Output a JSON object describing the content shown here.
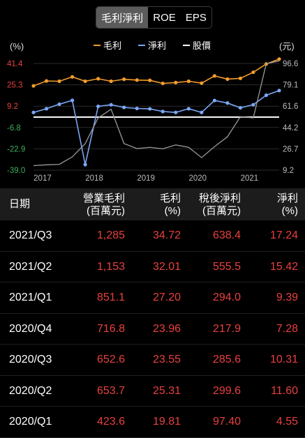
{
  "tabs": [
    {
      "label": "毛利淨利"
    },
    {
      "label": "ROE"
    },
    {
      "label": "EPS"
    }
  ],
  "chart_data": {
    "type": "line",
    "left_unit": "(%)",
    "right_unit": "(元)",
    "series": [
      {
        "name": "毛利",
        "color": "#f39c2b",
        "axis": "left",
        "values": [
          24.5,
          28.2,
          28.0,
          31.3,
          28.0,
          29.9,
          28.0,
          29.5,
          28.9,
          28.7,
          26.4,
          27.0,
          28.0,
          26.6,
          32.0,
          29.6,
          30.2,
          34.8,
          41.0,
          44.7
        ]
      },
      {
        "name": "淨利",
        "color": "#7ba7f5",
        "axis": "left",
        "values": [
          4.5,
          7.3,
          10.7,
          13.6,
          -34.8,
          9.1,
          10.3,
          8.3,
          7.5,
          7.2,
          5.2,
          4.5,
          7.3,
          4.5,
          13.5,
          11.6,
          8.0,
          10.3,
          17.5,
          21.0
        ]
      },
      {
        "name": "股價",
        "color": "#9a9a9a",
        "axis": "right",
        "values": [
          12.9,
          13.6,
          14.0,
          20.1,
          31.0,
          52.0,
          59.1,
          31.0,
          26.9,
          27.9,
          26.7,
          29.9,
          27.9,
          19.5,
          28.5,
          36.6,
          53.0,
          52.0,
          96.4,
          98.7
        ]
      }
    ],
    "baseline_color": "#ffffff",
    "baseline_label": "股價",
    "left_ticks": [
      41.4,
      25.3,
      9.2,
      -6.8,
      -22.9,
      -39.0
    ],
    "left_ylim": [
      -39.0,
      41.4
    ],
    "right_ticks": [
      96.6,
      79.1,
      61.6,
      44.2,
      26.7,
      9.2
    ],
    "right_ylim": [
      9.2,
      96.6
    ],
    "x_ticks": [
      "2017",
      "2018",
      "2019",
      "2020",
      "2021"
    ],
    "x_tick_index": [
      0.7,
      4.7,
      8.7,
      12.7,
      16.7
    ],
    "baseline_value": 1.0
  },
  "table": {
    "headers": {
      "date": "日期",
      "gross_profit": [
        "營業毛利",
        "(百萬元)"
      ],
      "gross_margin": [
        "毛利",
        "(%)"
      ],
      "net_profit": [
        "稅後淨利",
        "(百萬元)"
      ],
      "net_margin": [
        "淨利",
        "(%)"
      ]
    },
    "rows": [
      {
        "date": "2021/Q3",
        "gross_profit": "1,285",
        "gross_margin": "34.72",
        "net_profit": "638.4",
        "net_margin": "17.24"
      },
      {
        "date": "2021/Q2",
        "gross_profit": "1,153",
        "gross_margin": "32.01",
        "net_profit": "555.5",
        "net_margin": "15.42"
      },
      {
        "date": "2021/Q1",
        "gross_profit": "851.1",
        "gross_margin": "27.20",
        "net_profit": "294.0",
        "net_margin": "9.39"
      },
      {
        "date": "2020/Q4",
        "gross_profit": "716.8",
        "gross_margin": "23.96",
        "net_profit": "217.9",
        "net_margin": "7.28"
      },
      {
        "date": "2020/Q3",
        "gross_profit": "652.6",
        "gross_margin": "23.55",
        "net_profit": "285.6",
        "net_margin": "10.31"
      },
      {
        "date": "2020/Q2",
        "gross_profit": "653.7",
        "gross_margin": "25.31",
        "net_profit": "299.6",
        "net_margin": "11.60"
      },
      {
        "date": "2020/Q1",
        "gross_profit": "423.6",
        "gross_margin": "19.81",
        "net_profit": "97.40",
        "net_margin": "4.55"
      }
    ]
  }
}
